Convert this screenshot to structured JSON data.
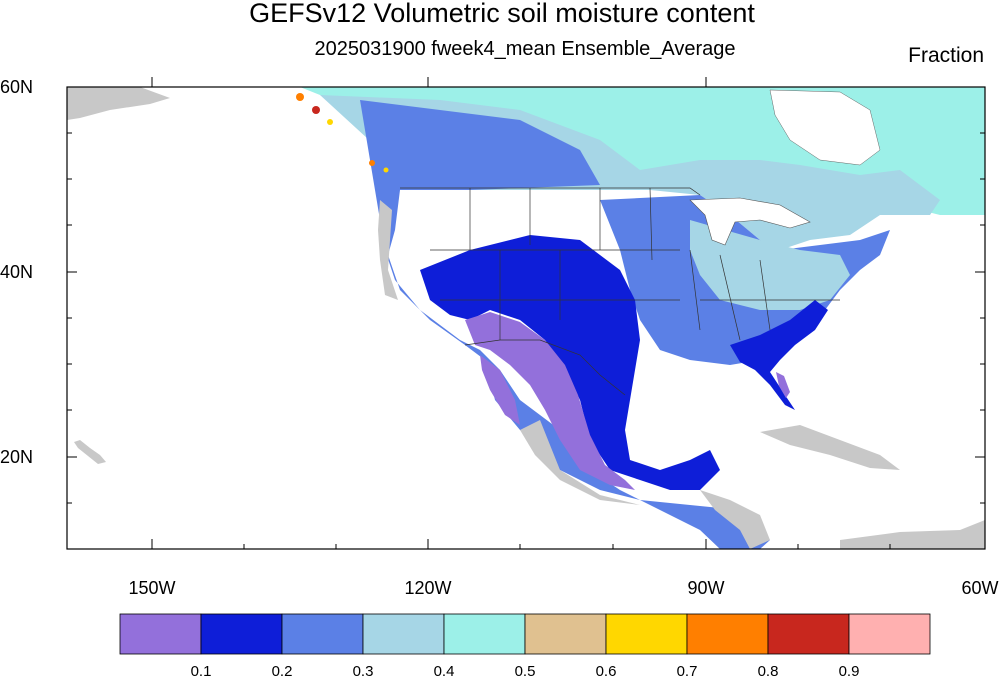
{
  "title": "GEFSv12 Volumetric soil moisture content",
  "subtitle": "2025031900 fweek4_mean Ensemble_Average",
  "units": "Fraction",
  "lat_labels": [
    "60N",
    "40N",
    "20N"
  ],
  "lon_labels": [
    "150W",
    "120W",
    "90W",
    "60W"
  ],
  "colorbar": {
    "colors": [
      "#9370db",
      "#0e1ed8",
      "#5b80e6",
      "#a6d6e6",
      "#9cf0e8",
      "#e0c190",
      "#ffd700",
      "#ff7f00",
      "#c8271e",
      "#ffb0b0"
    ],
    "labels": [
      "0.1",
      "0.2",
      "0.3",
      "0.4",
      "0.5",
      "0.6",
      "0.7",
      "0.8",
      "0.9"
    ]
  },
  "map": {
    "lat_range": [
      "10N",
      "60N"
    ],
    "lon_range": [
      "160W",
      "60W"
    ],
    "land_missing_color": "#c8c8c8"
  }
}
